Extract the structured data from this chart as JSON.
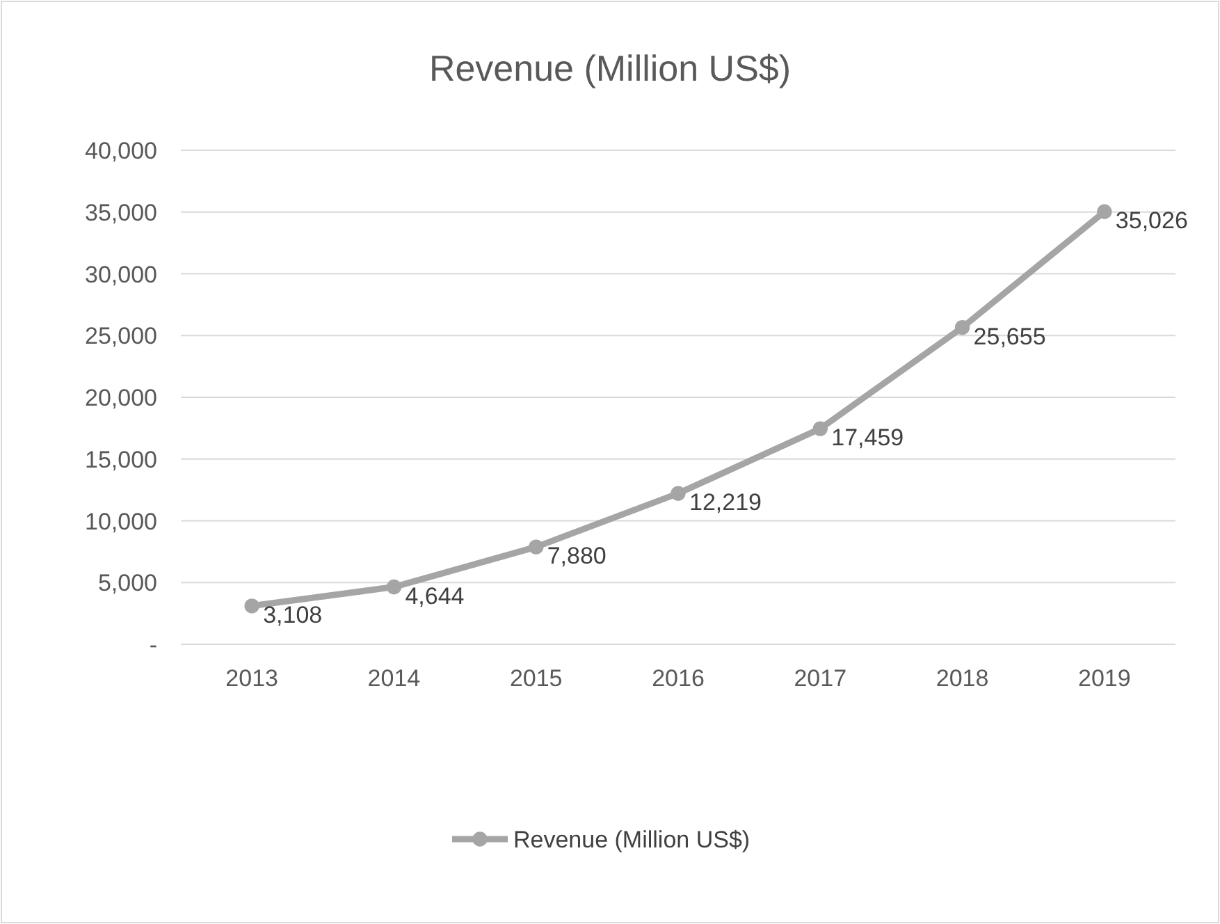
{
  "chart_data": {
    "type": "line",
    "title": "Revenue (Million US$)",
    "categories": [
      "2013",
      "2014",
      "2015",
      "2016",
      "2017",
      "2018",
      "2019"
    ],
    "series": [
      {
        "name": "Revenue (Million US$)",
        "color": "#a5a5a5",
        "values": [
          3108,
          4644,
          7880,
          12219,
          17459,
          25655,
          35026
        ],
        "value_labels": [
          "3,108",
          "4,644",
          "7,880",
          "12,219",
          "17,459",
          "25,655",
          "35,026"
        ]
      }
    ],
    "ylim": [
      0,
      40000
    ],
    "yticks": [
      {
        "value": 0,
        "label": "-"
      },
      {
        "value": 5000,
        "label": "5,000"
      },
      {
        "value": 10000,
        "label": "10,000"
      },
      {
        "value": 15000,
        "label": "15,000"
      },
      {
        "value": 20000,
        "label": "20,000"
      },
      {
        "value": 25000,
        "label": "25,000"
      },
      {
        "value": 30000,
        "label": "30,000"
      },
      {
        "value": 35000,
        "label": "35,000"
      },
      {
        "value": 40000,
        "label": "40,000"
      }
    ],
    "grid": "y",
    "legend": "bottom",
    "marker": "circle",
    "line_style": "solid"
  }
}
